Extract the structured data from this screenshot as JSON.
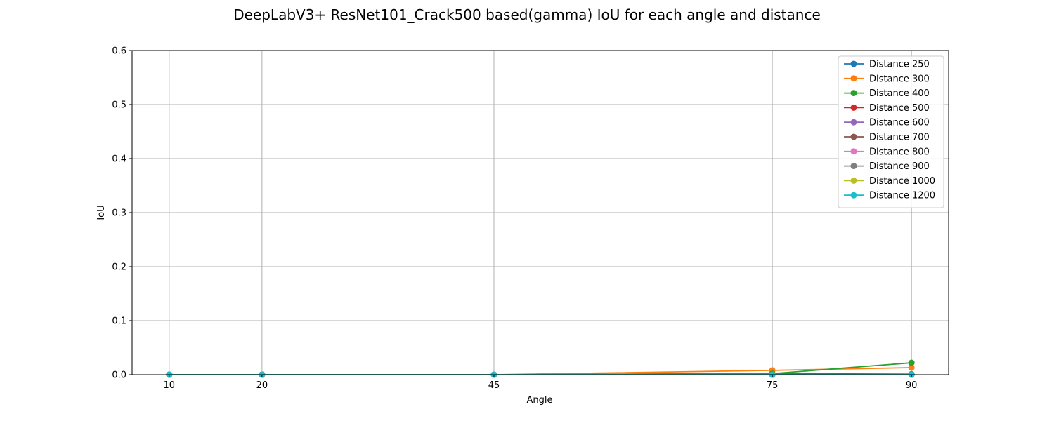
{
  "chart_data": {
    "type": "line",
    "title": "DeepLabV3+ ResNet101_Crack500 based(gamma) IoU for each angle and distance",
    "xlabel": "Angle",
    "ylabel": "IoU",
    "x": [
      10,
      20,
      45,
      75,
      90
    ],
    "xticks": [
      "10",
      "20",
      "45",
      "75",
      "90"
    ],
    "yticks": [
      "0.0",
      "0.1",
      "0.2",
      "0.3",
      "0.4",
      "0.5",
      "0.6"
    ],
    "xlim": [
      6,
      94
    ],
    "ylim": [
      0,
      0.6
    ],
    "grid": true,
    "legend_position": "top-right",
    "series": [
      {
        "name": "Distance 250",
        "color": "#1f77b4",
        "values": [
          0,
          0,
          0,
          0.002,
          0.001
        ]
      },
      {
        "name": "Distance 300",
        "color": "#ff7f0e",
        "values": [
          0,
          0,
          0,
          0.008,
          0.013
        ]
      },
      {
        "name": "Distance 400",
        "color": "#2ca02c",
        "values": [
          0,
          0,
          0,
          0.002,
          0.022
        ]
      },
      {
        "name": "Distance 500",
        "color": "#d62728",
        "values": [
          0,
          0,
          0,
          0,
          0
        ]
      },
      {
        "name": "Distance 600",
        "color": "#9467bd",
        "values": [
          0,
          0,
          0,
          0,
          0
        ]
      },
      {
        "name": "Distance 700",
        "color": "#8c564b",
        "values": [
          0,
          0,
          0,
          0,
          0
        ]
      },
      {
        "name": "Distance 800",
        "color": "#e377c2",
        "values": [
          0,
          0,
          0,
          0,
          0
        ]
      },
      {
        "name": "Distance 900",
        "color": "#7f7f7f",
        "values": [
          0,
          0,
          0,
          0,
          0
        ]
      },
      {
        "name": "Distance 1000",
        "color": "#bcbd22",
        "values": [
          0,
          0,
          0,
          0,
          0
        ]
      },
      {
        "name": "Distance 1200",
        "color": "#17becf",
        "values": [
          0,
          0,
          0,
          0,
          0
        ]
      }
    ]
  }
}
